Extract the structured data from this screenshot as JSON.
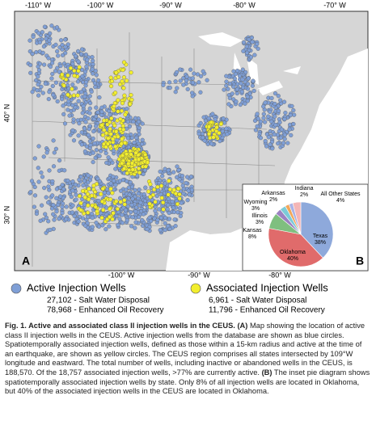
{
  "map": {
    "top_ticks": [
      "-110° W",
      "-100° W",
      "-90° W",
      "-80° W",
      "-70° W"
    ],
    "bottom_ticks": [
      "-100° W",
      "-90° W",
      "-80° W"
    ],
    "left_ticks": [
      "40° N",
      "30° N"
    ],
    "panel_a": "A",
    "panel_b": "B"
  },
  "chart_data": {
    "type": "pie",
    "categories": [
      "Texas",
      "Oklahoma",
      "Kansas",
      "Illinois",
      "Wyoming",
      "Arkansas",
      "Indiana",
      "All Other States"
    ],
    "values": [
      38,
      40,
      8,
      3,
      3,
      2,
      2,
      4
    ],
    "value_labels": [
      "38%",
      "40%",
      "8%",
      "3%",
      "3%",
      "2%",
      "2%",
      "4%"
    ],
    "colors": [
      "#8ea9db",
      "#e06b6b",
      "#7fbf7f",
      "#9c82c2",
      "#7ccbd8",
      "#f2a65a",
      "#aab3e6",
      "#f4b6b6"
    ]
  },
  "legend": {
    "active": {
      "title": "Active Injection Wells",
      "color": "#7f9fd6",
      "lines": [
        "27,102 - Salt Water Disposal",
        "78,968 - Enhanced Oil Recovery"
      ]
    },
    "associated": {
      "title": "Associated Injection Wells",
      "color": "#f2ee2e",
      "lines": [
        "6,961 - Salt Water Disposal",
        "11,796 - Enhanced Oil Recovery"
      ]
    }
  },
  "caption": {
    "title": "Fig. 1. Active and associated class II injection wells in the CEUS.",
    "parts": [
      " ",
      "(A)",
      " Map showing the location of active class II injection wells in the CEUS. Active injection wells from the database are shown as blue circles. Spatiotemporally associated injection wells, defined as those within a 15-km radius and active at the time of an earthquake, are shown as yellow circles. The CEUS region comprises all states intersected by 109°W longitude and eastward. The total number of wells, including inactive or abandoned wells in the CEUS, is 188,570. Of the 18,757 associated injection wells, >77% are currently active. ",
      "(B)",
      " The inset pie diagram shows spatiotemporally associated injection wells by state. Only 8% of all injection wells are located in Oklahoma, but 40% of the associated injection wells in the CEUS are located in Oklahoma."
    ]
  }
}
